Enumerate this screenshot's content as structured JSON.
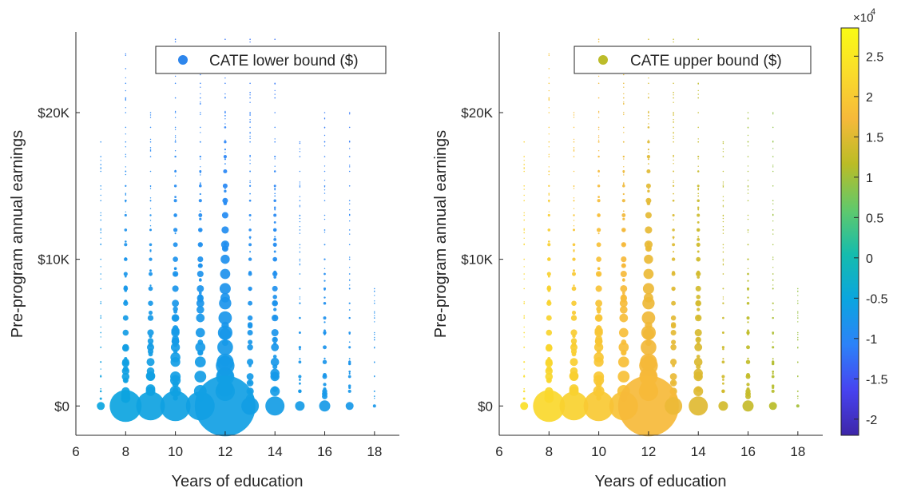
{
  "chart_data": [
    {
      "type": "scatter",
      "title": "",
      "xlabel": "Years of education",
      "ylabel": "Pre-program annual earnings",
      "xlim": [
        6,
        19
      ],
      "ylim": [
        -2000,
        25500
      ],
      "x_ticks": [
        "6",
        "8",
        "10",
        "12",
        "14",
        "16",
        "18"
      ],
      "y_ticks": [
        "$0",
        "$10K",
        "$20K"
      ],
      "legend": {
        "label": "CATE lower bound ($)",
        "position": "top-right",
        "color": "#2e86ec"
      },
      "color_mode": "lower",
      "size_note": "bubble area proportional to number of observations",
      "bubbles": [
        {
          "x": 7,
          "y": 0,
          "r": 5
        },
        {
          "x": 8,
          "y": 0,
          "r": 20
        },
        {
          "x": 9,
          "y": 0,
          "r": 18
        },
        {
          "x": 10,
          "y": 0,
          "r": 19
        },
        {
          "x": 11,
          "y": 0,
          "r": 18
        },
        {
          "x": 12,
          "y": 0,
          "r": 38
        },
        {
          "x": 13,
          "y": 0,
          "r": 11
        },
        {
          "x": 14,
          "y": 0,
          "r": 12
        },
        {
          "x": 15,
          "y": 0,
          "r": 6
        },
        {
          "x": 16,
          "y": 0,
          "r": 7
        },
        {
          "x": 17,
          "y": 0,
          "r": 5
        },
        {
          "x": 18,
          "y": 0,
          "r": 2
        }
      ],
      "columns": [
        {
          "x": 7,
          "ymax": 18000,
          "rmax": 1.4
        },
        {
          "x": 8,
          "ymax": 24000,
          "rmax": 5.5
        },
        {
          "x": 9,
          "ymax": 20000,
          "rmax": 6.5
        },
        {
          "x": 10,
          "ymax": 25000,
          "rmax": 7.5
        },
        {
          "x": 11,
          "ymax": 24000,
          "rmax": 8.5
        },
        {
          "x": 12,
          "ymax": 25000,
          "rmax": 13
        },
        {
          "x": 13,
          "ymax": 25000,
          "rmax": 5
        },
        {
          "x": 14,
          "ymax": 25000,
          "rmax": 6.5
        },
        {
          "x": 15,
          "ymax": 18000,
          "rmax": 2.5
        },
        {
          "x": 16,
          "ymax": 20000,
          "rmax": 3.5
        },
        {
          "x": 17,
          "ymax": 20000,
          "rmax": 2.2
        },
        {
          "x": 18,
          "ymax": 8500,
          "rmax": 1.2
        }
      ]
    },
    {
      "type": "scatter",
      "title": "",
      "xlabel": "Years of education",
      "ylabel": "Pre-program annual earnings",
      "xlim": [
        6,
        19
      ],
      "ylim": [
        -2000,
        25500
      ],
      "x_ticks": [
        "6",
        "8",
        "10",
        "12",
        "14",
        "16",
        "18"
      ],
      "y_ticks": [
        "$0",
        "$10K",
        "$20K"
      ],
      "legend": {
        "label": "CATE upper bound ($)",
        "position": "top-right",
        "color": "#bcbc2a"
      },
      "color_mode": "upper",
      "size_note": "bubble area proportional to number of observations",
      "bubbles": [
        {
          "x": 7,
          "y": 0,
          "r": 5
        },
        {
          "x": 8,
          "y": 0,
          "r": 20
        },
        {
          "x": 9,
          "y": 0,
          "r": 18
        },
        {
          "x": 10,
          "y": 0,
          "r": 19
        },
        {
          "x": 11,
          "y": 0,
          "r": 18
        },
        {
          "x": 12,
          "y": 0,
          "r": 38
        },
        {
          "x": 13,
          "y": 0,
          "r": 11
        },
        {
          "x": 14,
          "y": 0,
          "r": 12
        },
        {
          "x": 15,
          "y": 0,
          "r": 6
        },
        {
          "x": 16,
          "y": 0,
          "r": 7
        },
        {
          "x": 17,
          "y": 0,
          "r": 5
        },
        {
          "x": 18,
          "y": 0,
          "r": 2
        }
      ],
      "columns": [
        {
          "x": 7,
          "ymax": 18000,
          "rmax": 1.4
        },
        {
          "x": 8,
          "ymax": 24000,
          "rmax": 5.5
        },
        {
          "x": 9,
          "ymax": 20000,
          "rmax": 6.5
        },
        {
          "x": 10,
          "ymax": 25000,
          "rmax": 7.5
        },
        {
          "x": 11,
          "ymax": 24000,
          "rmax": 8.5
        },
        {
          "x": 12,
          "ymax": 25000,
          "rmax": 13
        },
        {
          "x": 13,
          "ymax": 25000,
          "rmax": 5
        },
        {
          "x": 14,
          "ymax": 25000,
          "rmax": 6.5
        },
        {
          "x": 15,
          "ymax": 18000,
          "rmax": 2.5
        },
        {
          "x": 16,
          "ymax": 20000,
          "rmax": 3.5
        },
        {
          "x": 17,
          "ymax": 20000,
          "rmax": 2.2
        },
        {
          "x": 18,
          "ymax": 8500,
          "rmax": 1.2
        }
      ]
    }
  ],
  "colorbar": {
    "exponent_base": "×10",
    "exponent_power": "4",
    "ticks": [
      "2.5",
      "2",
      "1.5",
      "1",
      "0.5",
      "0",
      "-0.5",
      "-1",
      "-1.5",
      "-2"
    ],
    "tick_values": [
      2.5,
      2,
      1.5,
      1,
      0.5,
      0,
      -0.5,
      -1,
      -1.5,
      -2
    ],
    "range": [
      -2.2,
      2.85
    ],
    "colormap": [
      "#3e26a8",
      "#4743f0",
      "#2c82f8",
      "#0ba5df",
      "#15bcad",
      "#62c96a",
      "#bbbc26",
      "#f6b93a",
      "#fadc2a",
      "#f9fb15"
    ]
  }
}
